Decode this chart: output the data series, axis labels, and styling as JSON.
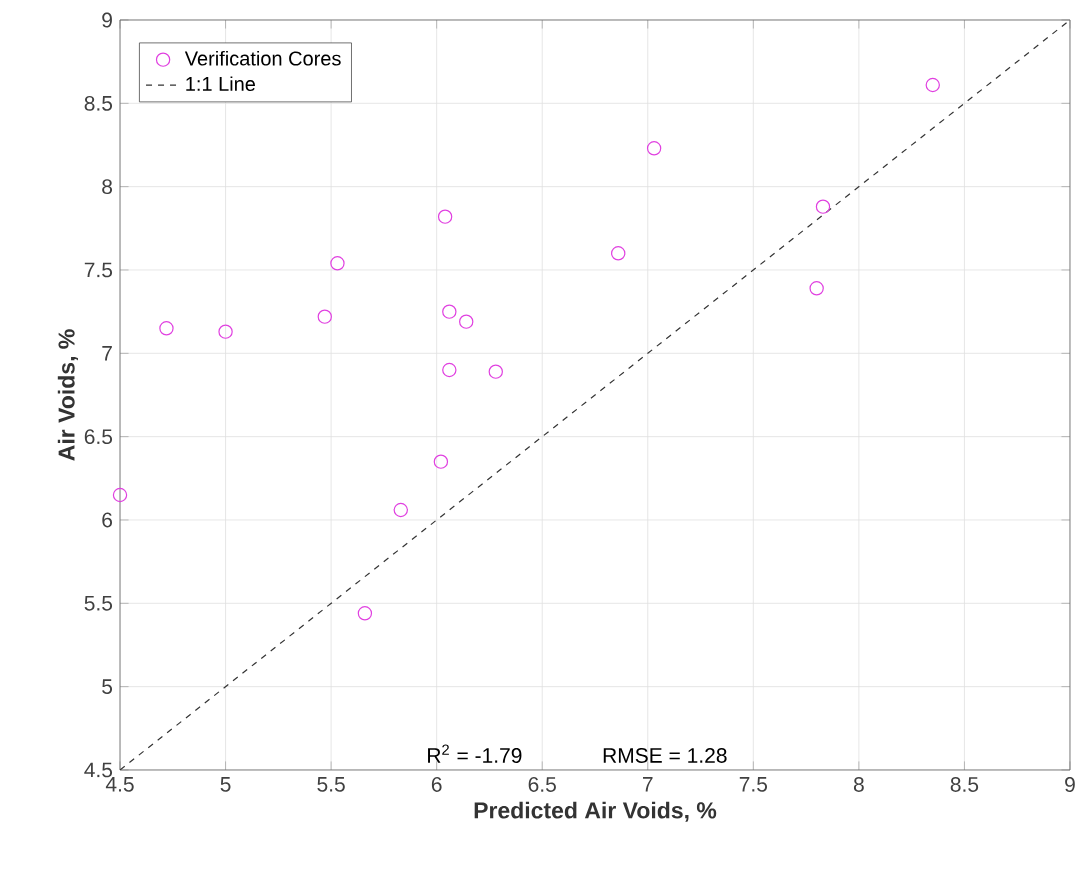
{
  "chart_data": {
    "type": "scatter",
    "xlabel": "Predicted Air Voids, %",
    "ylabel": "Air Voids, %",
    "xlim": [
      4.5,
      9
    ],
    "ylim": [
      4.5,
      9
    ],
    "xticks": [
      4.5,
      5,
      5.5,
      6,
      6.5,
      7,
      7.5,
      8,
      8.5,
      9
    ],
    "yticks": [
      4.5,
      5,
      5.5,
      6,
      6.5,
      7,
      7.5,
      8,
      8.5,
      9
    ],
    "grid": true,
    "legend": "top left",
    "marker": "circle",
    "annotations": [
      "R$^{2}$ = -1.79",
      "RMSE = 1.28"
    ],
    "series": [
      {
        "name": "Verification Cores",
        "color": "#e040e0",
        "x": [
          4.5,
          4.72,
          5.0,
          5.47,
          5.53,
          5.66,
          5.83,
          6.02,
          6.04,
          6.06,
          6.06,
          6.14,
          6.28,
          6.86,
          7.03,
          7.8,
          7.83,
          8.35
        ],
        "values": [
          6.15,
          7.15,
          7.13,
          7.22,
          7.54,
          5.44,
          6.06,
          6.35,
          7.82,
          6.9,
          7.25,
          7.19,
          6.89,
          7.6,
          8.23,
          7.39,
          7.88,
          8.61
        ]
      },
      {
        "name": "1:1 Line",
        "type": "line",
        "color": "#333333",
        "line_style": "dashed",
        "marker": "none",
        "x": [
          4.5,
          9
        ],
        "values": [
          4.5,
          9
        ]
      }
    ]
  }
}
